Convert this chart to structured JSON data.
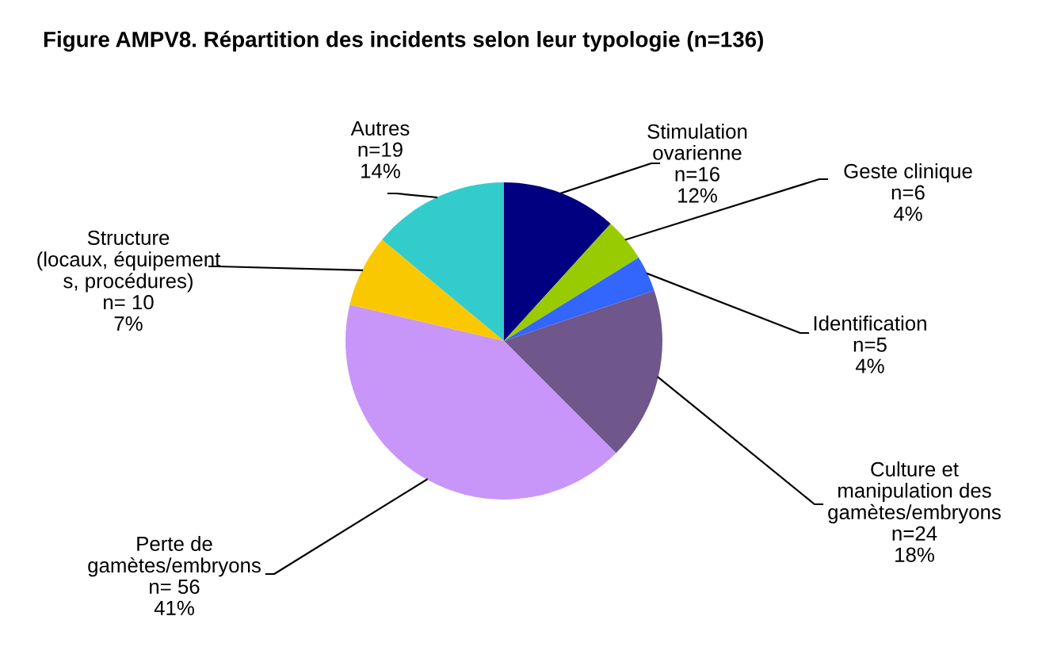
{
  "chart_data": {
    "type": "pie",
    "title": "Figure AMPV8. Répartition des incidents selon leur typologie (n=136)",
    "categories": [
      "Stimulation\novarienne",
      "Geste clinique",
      "Identification",
      "Culture et\nmanipulation des\ngamètes/embryons",
      "Perte de\ngamètes/embryons",
      "Structure\n(locaux, équipement\ns, procédures)",
      "Autres"
    ],
    "values": [
      16,
      6,
      5,
      24,
      56,
      10,
      19
    ],
    "colors": [
      "#000080",
      "#99cc00",
      "#3366ff",
      "#6f578c",
      "#c896f8",
      "#fac800",
      "#33cccc"
    ],
    "value_labels": [
      "n=16\n12%",
      "n=6\n4%",
      "n=5\n4%",
      "n=24\n18%",
      "n= 56\n41%",
      "n= 10\n7%",
      "n=19\n14%"
    ]
  }
}
